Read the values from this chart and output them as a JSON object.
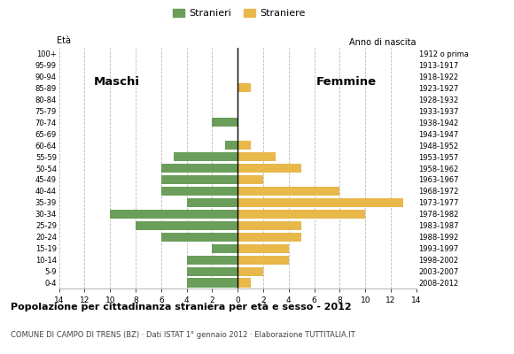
{
  "age_groups": [
    "0-4",
    "5-9",
    "10-14",
    "15-19",
    "20-24",
    "25-29",
    "30-34",
    "35-39",
    "40-44",
    "45-49",
    "50-54",
    "55-59",
    "60-64",
    "65-69",
    "70-74",
    "75-79",
    "80-84",
    "85-89",
    "90-94",
    "95-99",
    "100+"
  ],
  "birth_years": [
    "2008-2012",
    "2003-2007",
    "1998-2002",
    "1993-1997",
    "1988-1992",
    "1983-1987",
    "1978-1982",
    "1973-1977",
    "1968-1972",
    "1963-1967",
    "1958-1962",
    "1953-1957",
    "1948-1952",
    "1943-1947",
    "1938-1942",
    "1933-1937",
    "1928-1932",
    "1923-1927",
    "1918-1922",
    "1913-1917",
    "1912 o prima"
  ],
  "males": [
    4,
    4,
    4,
    2,
    6,
    8,
    10,
    4,
    6,
    6,
    6,
    5,
    1,
    0,
    2,
    0,
    0,
    0,
    0,
    0,
    0
  ],
  "females": [
    1,
    2,
    4,
    4,
    5,
    5,
    10,
    13,
    8,
    2,
    5,
    3,
    1,
    0,
    0,
    0,
    0,
    1,
    0,
    0,
    0
  ],
  "male_color": "#6a9e5a",
  "female_color": "#e8b84b",
  "title": "Popolazione per cittadinanza straniera per età e sesso - 2012",
  "subtitle": "COMUNE DI CAMPO DI TRENS (BZ) · Dati ISTAT 1° gennaio 2012 · Elaborazione TUTTITALIA.IT",
  "label_eta": "Età",
  "label_anno": "Anno di nascita",
  "legend_male": "Stranieri",
  "legend_female": "Straniere",
  "label_maschi": "Maschi",
  "label_femmine": "Femmine",
  "xlim": 14,
  "background_color": "#ffffff",
  "grid_color": "#bbbbbb"
}
